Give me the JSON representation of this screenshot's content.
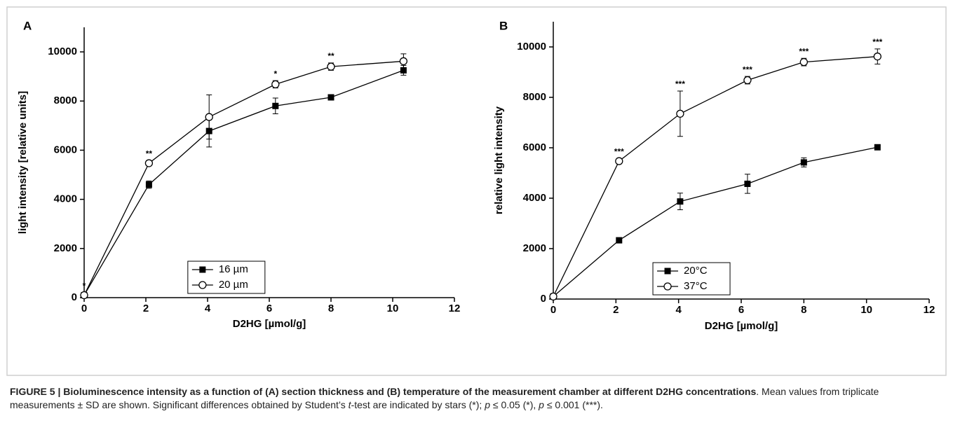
{
  "chart_data": [
    {
      "type": "line",
      "panel": "A",
      "xlabel": "D2HG [µmol/g]",
      "ylabel": "light intensity [relative units]",
      "x": [
        0,
        2.1,
        4.05,
        6.2,
        8,
        10.35
      ],
      "xlim": [
        0,
        12
      ],
      "xticks": [
        0,
        2,
        4,
        6,
        8,
        10,
        12
      ],
      "ylim": [
        0,
        11000
      ],
      "yticks": [
        0,
        2000,
        4000,
        6000,
        8000,
        10000
      ],
      "legend": "lower center",
      "series": [
        {
          "name": "16 µm",
          "marker": "square",
          "color": "#000000",
          "values": [
            100,
            4600,
            6780,
            7800,
            8150,
            9250
          ],
          "errors": [
            0,
            150,
            650,
            320,
            50,
            200
          ]
        },
        {
          "name": "20 µm",
          "marker": "circle",
          "color": "#000000",
          "values": [
            100,
            5470,
            7350,
            8680,
            9400,
            9620
          ],
          "errors": [
            100,
            100,
            900,
            150,
            150,
            300
          ]
        }
      ],
      "annotations": [
        {
          "x": 0,
          "text": "*"
        },
        {
          "x": 2.1,
          "text": "**"
        },
        {
          "x": 6.2,
          "text": "*"
        },
        {
          "x": 8,
          "text": "**"
        }
      ]
    },
    {
      "type": "line",
      "panel": "B",
      "xlabel": "D2HG [µmol/g]",
      "ylabel": "relative light intensity",
      "x": [
        0,
        2.1,
        4.05,
        6.2,
        8,
        10.35
      ],
      "xlim": [
        0,
        12
      ],
      "xticks": [
        0,
        2,
        4,
        6,
        8,
        10,
        12
      ],
      "ylim": [
        0,
        11000
      ],
      "yticks": [
        0,
        2000,
        4000,
        6000,
        8000,
        10000
      ],
      "legend": "lower left",
      "series": [
        {
          "name": "20°C",
          "marker": "square",
          "color": "#000000",
          "values": [
            100,
            2330,
            3870,
            4570,
            5420,
            6020
          ],
          "errors": [
            0,
            50,
            330,
            380,
            180,
            50
          ]
        },
        {
          "name": "37°C",
          "marker": "circle",
          "color": "#000000",
          "values": [
            100,
            5470,
            7350,
            8680,
            9400,
            9620
          ],
          "errors": [
            100,
            100,
            900,
            150,
            150,
            300
          ]
        }
      ],
      "annotations": [
        {
          "x": 2.1,
          "text": "***"
        },
        {
          "x": 4.05,
          "text": "***"
        },
        {
          "x": 6.2,
          "text": "***"
        },
        {
          "x": 8,
          "text": "***"
        },
        {
          "x": 10.35,
          "text": "***"
        }
      ]
    }
  ],
  "caption": [
    {
      "text": "FIGURE 5 | Bioluminescence intensity as a function of (A) section thickness and (B) temperature of the measurement chamber at different D2HG concentrations",
      "style": "bold"
    },
    {
      "text": ". Mean values from triplicate measurements ± SD are shown. Significant differences obtained by Student’s ",
      "style": "normal"
    },
    {
      "text": "t",
      "style": "italic"
    },
    {
      "text": "-test are indicated by stars (*); ",
      "style": "normal"
    },
    {
      "text": "p",
      "style": "italic"
    },
    {
      "text": " ≤ 0.05 (*), ",
      "style": "normal"
    },
    {
      "text": "p",
      "style": "italic"
    },
    {
      "text": " ≤ 0.001 (***).",
      "style": "normal"
    }
  ]
}
